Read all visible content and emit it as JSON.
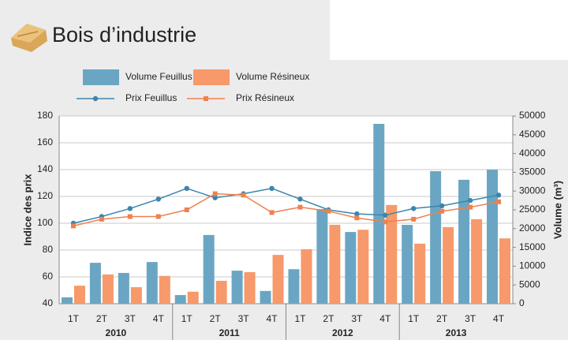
{
  "chart_data": {
    "type": "combo",
    "title": "Bois d’industrie",
    "categories": [
      "1T",
      "2T",
      "3T",
      "4T",
      "1T",
      "2T",
      "3T",
      "4T",
      "1T",
      "2T",
      "3T",
      "4T",
      "1T",
      "2T",
      "3T",
      "4T"
    ],
    "groups": [
      "2010",
      "2011",
      "2012",
      "2013"
    ],
    "ylabel": "Indice des prix",
    "y2label": "Volume (m³)",
    "ylim": [
      40,
      180
    ],
    "yticks": [
      40,
      60,
      80,
      100,
      120,
      140,
      160,
      180
    ],
    "y2lim": [
      0,
      50000
    ],
    "y2ticks": [
      0,
      5000,
      10000,
      15000,
      20000,
      25000,
      30000,
      35000,
      40000,
      45000,
      50000
    ],
    "grid": true,
    "series": [
      {
        "name": "Volume Feuillus",
        "type": "bar",
        "axis": "y2",
        "color": "#6aa6c3",
        "values": [
          1700,
          10900,
          8200,
          11100,
          2300,
          18300,
          8800,
          3400,
          9200,
          25200,
          19100,
          47900,
          21000,
          35300,
          33000,
          35700
        ]
      },
      {
        "name": "Volume Résineux",
        "type": "bar",
        "axis": "y2",
        "color": "#f7996a",
        "values": [
          4800,
          7800,
          4400,
          7400,
          3200,
          6100,
          8400,
          13000,
          14500,
          21000,
          19700,
          26300,
          16000,
          20400,
          22500,
          17400
        ]
      },
      {
        "name": "Prix Feuillus",
        "type": "line",
        "axis": "y",
        "color": "#3a86ad",
        "values": [
          100,
          105,
          111,
          118,
          126,
          119,
          122,
          126,
          118,
          110,
          107,
          106,
          111,
          113,
          117,
          121
        ]
      },
      {
        "name": "Prix Résineux",
        "type": "line",
        "axis": "y",
        "color": "#f0804f",
        "values": [
          98,
          103,
          105,
          105,
          110,
          122,
          121,
          108,
          112,
          109,
          104,
          101,
          103,
          109,
          112,
          116
        ]
      }
    ]
  }
}
